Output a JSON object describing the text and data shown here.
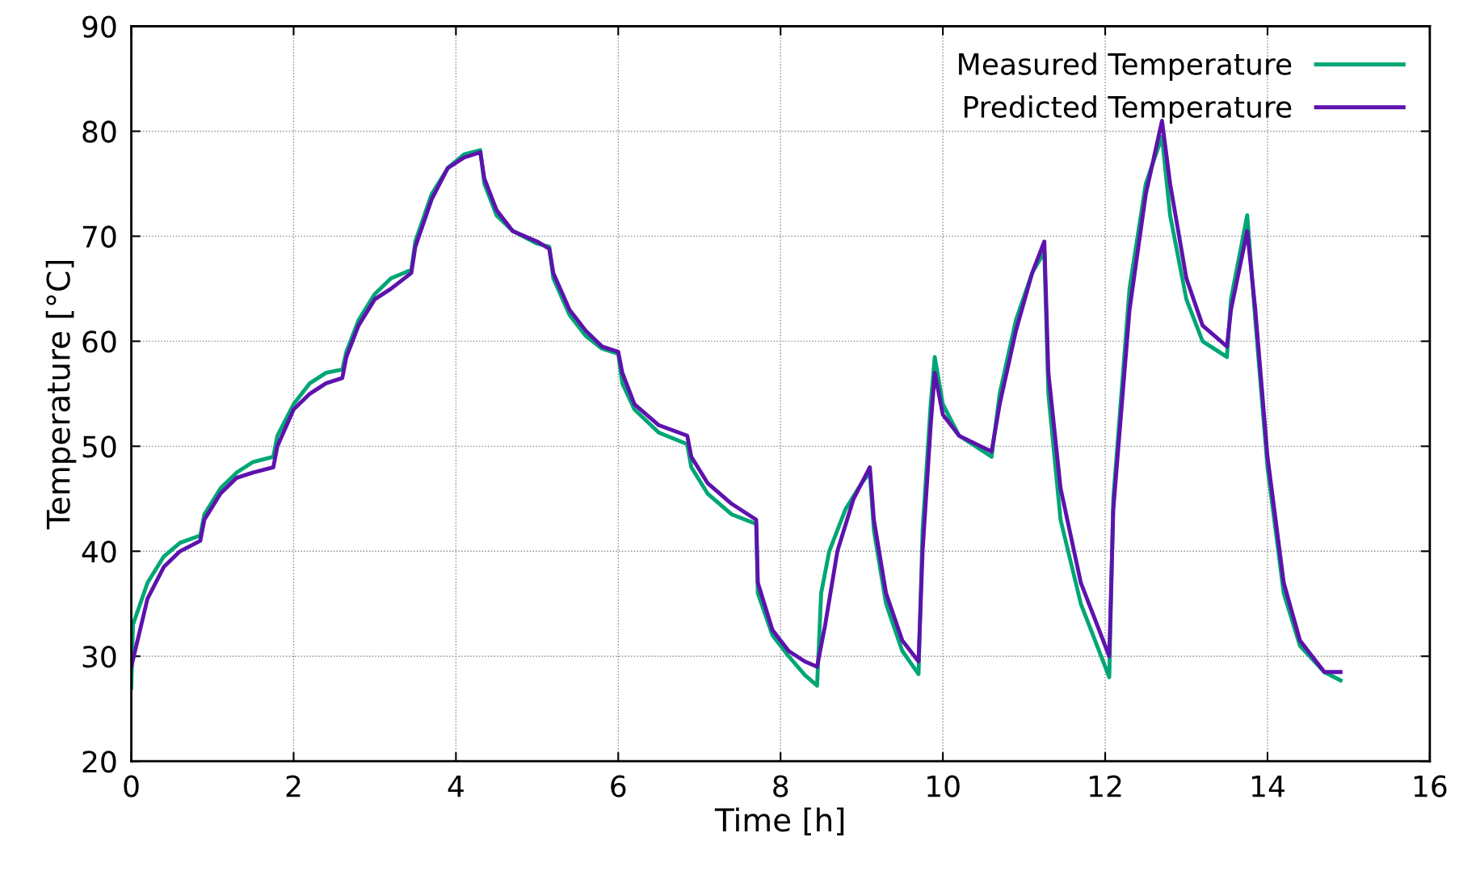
{
  "chart_data": {
    "type": "line",
    "xlabel": "Time [h]",
    "ylabel": "Temperature [°C]",
    "xlim": [
      0,
      16
    ],
    "ylim": [
      20,
      90
    ],
    "xticks": [
      0,
      2,
      4,
      6,
      8,
      10,
      12,
      14,
      16
    ],
    "yticks": [
      20,
      30,
      40,
      50,
      60,
      70,
      80,
      90
    ],
    "grid": true,
    "legend": "top right",
    "line_style": "solid",
    "marker": "none",
    "series": [
      {
        "name": "Measured Temperature",
        "color": "#00a676",
        "x": [
          0,
          0.02,
          0.2,
          0.4,
          0.6,
          0.85,
          0.9,
          1.1,
          1.3,
          1.5,
          1.75,
          1.8,
          2.0,
          2.2,
          2.4,
          2.6,
          2.65,
          2.8,
          3.0,
          3.2,
          3.45,
          3.5,
          3.7,
          3.9,
          4.1,
          4.3,
          4.35,
          4.5,
          4.7,
          5.0,
          5.15,
          5.2,
          5.4,
          5.6,
          5.8,
          6.0,
          6.05,
          6.2,
          6.5,
          6.85,
          6.9,
          7.1,
          7.4,
          7.7,
          7.72,
          7.9,
          8.1,
          8.3,
          8.45,
          8.5,
          8.6,
          8.8,
          9.0,
          9.1,
          9.15,
          9.3,
          9.5,
          9.7,
          9.75,
          9.85,
          9.9,
          10.0,
          10.2,
          10.6,
          10.7,
          10.9,
          11.1,
          11.25,
          11.3,
          11.45,
          11.7,
          12.0,
          12.05,
          12.1,
          12.3,
          12.5,
          12.7,
          12.8,
          13.0,
          13.2,
          13.5,
          13.55,
          13.75,
          13.85,
          14.0,
          14.2,
          14.4,
          14.7,
          14.9
        ],
        "values": [
          27,
          33,
          37,
          39.5,
          40.8,
          41.5,
          43.5,
          46,
          47.5,
          48.5,
          49,
          51,
          54,
          56,
          57,
          57.3,
          59,
          62,
          64.5,
          66,
          66.8,
          69.5,
          74,
          76.5,
          77.8,
          78.2,
          75,
          72,
          70.5,
          69.3,
          69,
          66,
          62.5,
          60.5,
          59.3,
          58.8,
          56,
          53.5,
          51.3,
          50.2,
          48,
          45.5,
          43.5,
          42.6,
          36,
          32,
          30,
          28.2,
          27.2,
          36,
          40,
          44,
          46.5,
          47.5,
          42,
          35,
          30.5,
          28.3,
          42,
          54,
          58.5,
          54,
          51,
          49,
          55,
          62,
          66.5,
          68.5,
          55,
          43,
          35,
          29,
          28,
          45,
          65,
          75,
          79.5,
          72,
          64,
          60,
          58.5,
          64,
          72,
          62,
          48,
          36,
          31,
          28.5,
          27.7
        ]
      },
      {
        "name": "Predicted Temperature",
        "color": "#5e12ad",
        "x": [
          0,
          0.2,
          0.4,
          0.6,
          0.85,
          0.9,
          1.1,
          1.3,
          1.5,
          1.75,
          1.8,
          2.0,
          2.2,
          2.4,
          2.6,
          2.65,
          2.8,
          3.0,
          3.2,
          3.45,
          3.5,
          3.7,
          3.9,
          4.1,
          4.3,
          4.35,
          4.5,
          4.7,
          5.0,
          5.15,
          5.2,
          5.4,
          5.6,
          5.8,
          6.0,
          6.05,
          6.2,
          6.5,
          6.85,
          6.9,
          7.1,
          7.4,
          7.7,
          7.72,
          7.9,
          8.1,
          8.3,
          8.45,
          8.55,
          8.7,
          8.9,
          9.1,
          9.15,
          9.3,
          9.5,
          9.7,
          9.75,
          9.85,
          9.9,
          10.0,
          10.2,
          10.6,
          10.7,
          10.9,
          11.1,
          11.25,
          11.3,
          11.45,
          11.7,
          12.05,
          12.1,
          12.3,
          12.5,
          12.7,
          12.8,
          13.0,
          13.2,
          13.5,
          13.55,
          13.75,
          13.85,
          14.0,
          14.2,
          14.4,
          14.7,
          14.9
        ],
        "values": [
          29,
          35.5,
          38.5,
          40,
          41,
          43,
          45.5,
          47,
          47.5,
          48,
          50,
          53.5,
          55,
          56,
          56.5,
          58.5,
          61.5,
          64,
          65,
          66.5,
          69,
          73.5,
          76.5,
          77.5,
          78,
          75.5,
          72.5,
          70.5,
          69.5,
          68.8,
          66.5,
          63,
          61,
          59.5,
          59,
          57,
          54,
          52,
          51,
          49,
          46.5,
          44.5,
          43,
          37,
          32.5,
          30.5,
          29.5,
          29,
          33,
          40,
          45,
          48,
          43,
          36,
          31.5,
          29.5,
          40,
          52,
          57,
          53,
          51,
          49.5,
          54,
          61,
          66.5,
          69.5,
          57,
          46,
          37,
          30,
          44,
          63,
          74,
          81,
          75,
          66,
          61.5,
          59.5,
          63,
          70.5,
          63,
          49,
          37,
          31.5,
          28.5,
          28.5
        ]
      }
    ]
  }
}
